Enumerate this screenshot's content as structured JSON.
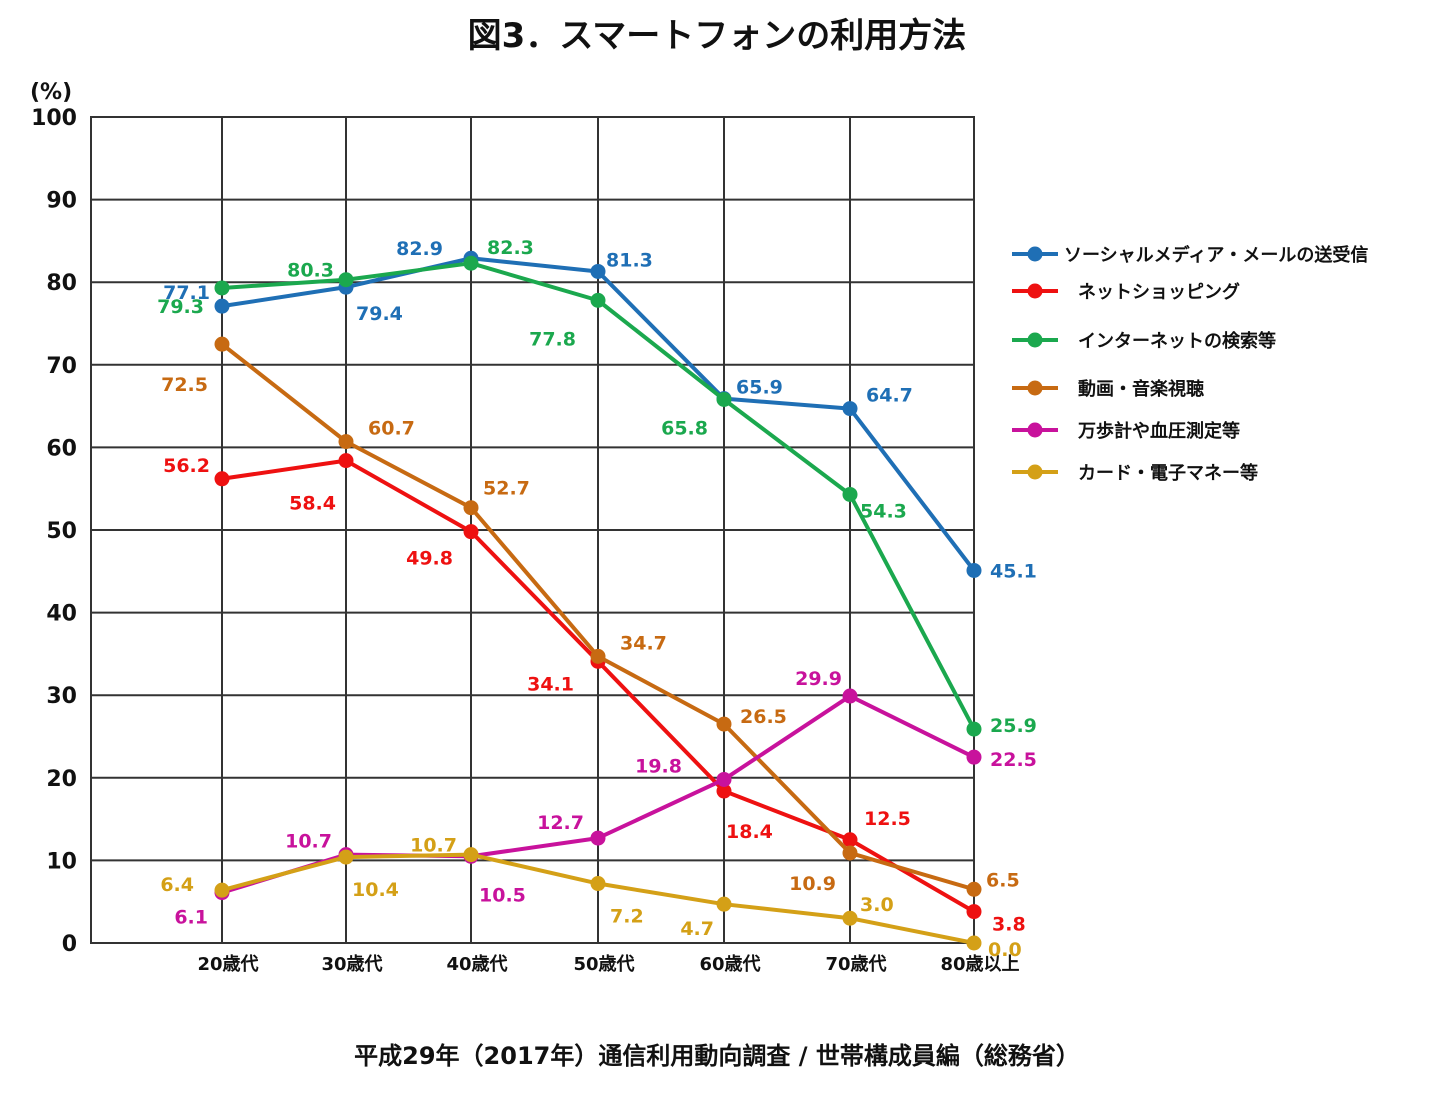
{
  "chart_data": {
    "type": "line",
    "title": "図3．スマートフォンの利用方法",
    "source": "平成29年（2017年）通信利用動向調査 / 世帯構成員編（総務省）",
    "yunit": "(%)",
    "ylim": [
      0,
      100
    ],
    "yticks": [
      "0",
      "10",
      "20",
      "30",
      "40",
      "50",
      "60",
      "70",
      "80",
      "90",
      "100"
    ],
    "grid": true,
    "legend_position": "right",
    "categories": [
      "20歳代",
      "30歳代",
      "40歳代",
      "50歳代",
      "60歳代",
      "70歳代",
      "80歳以上"
    ],
    "series": [
      {
        "name": "ソーシャルメディア・メールの送受信",
        "color": "#1F6FB5",
        "values": [
          77.1,
          79.4,
          82.9,
          81.3,
          65.9,
          64.7,
          45.1
        ],
        "labels": [
          "77.1",
          "79.4",
          "82.9",
          "81.3",
          "65.9",
          "64.7",
          "45.1"
        ]
      },
      {
        "name": "ネットショッピング",
        "color": "#EE1111",
        "values": [
          56.2,
          58.4,
          49.8,
          34.1,
          18.4,
          12.5,
          3.8
        ],
        "labels": [
          "56.2",
          "58.4",
          "49.8",
          "34.1",
          "18.4",
          "12.5",
          "3.8"
        ]
      },
      {
        "name": "インターネットの検索等",
        "color": "#1BA84E",
        "values": [
          79.3,
          80.3,
          82.3,
          77.8,
          65.8,
          54.3,
          25.9
        ],
        "labels": [
          "79.3",
          "80.3",
          "82.3",
          "77.8",
          "65.8",
          "54.3",
          "25.9"
        ]
      },
      {
        "name": "動画・音楽視聴",
        "color": "#C76A12",
        "values": [
          72.5,
          60.7,
          52.7,
          34.7,
          26.5,
          10.9,
          6.5
        ],
        "labels": [
          "72.5",
          "60.7",
          "52.7",
          "34.7",
          "26.5",
          "10.9",
          "6.5"
        ]
      },
      {
        "name": "万歩計や血圧測定等",
        "color": "#C8129C",
        "values": [
          6.1,
          10.7,
          10.5,
          12.7,
          19.8,
          29.9,
          22.5
        ],
        "labels": [
          "6.1",
          "10.7",
          "10.5",
          "12.7",
          "19.8",
          "29.9",
          "22.5"
        ]
      },
      {
        "name": "カード・電子マネー等",
        "color": "#D4A017",
        "values": [
          6.4,
          10.4,
          10.7,
          7.2,
          4.7,
          3.0,
          0.0
        ],
        "labels": [
          "6.4",
          "10.4",
          "10.7",
          "7.2",
          "4.7",
          "3.0",
          "0.0"
        ]
      }
    ]
  }
}
